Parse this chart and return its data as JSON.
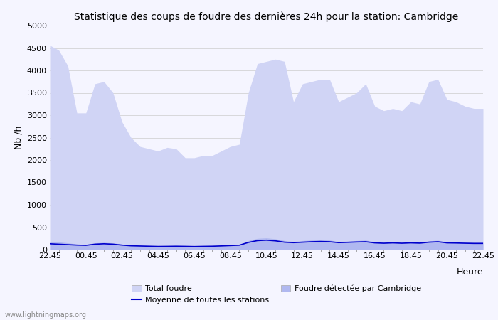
{
  "title": "Statistique des coups de foudre des dernières 24h pour la station: Cambridge",
  "ylabel": "Nb /h",
  "xlabel": "Heure",
  "watermark": "www.lightningmaps.org",
  "xtick_labels": [
    "22:45",
    "00:45",
    "02:45",
    "04:45",
    "06:45",
    "08:45",
    "10:45",
    "12:45",
    "14:45",
    "16:45",
    "18:45",
    "20:45",
    "22:45"
  ],
  "ylim": [
    0,
    5000
  ],
  "yticks": [
    0,
    500,
    1000,
    1500,
    2000,
    2500,
    3000,
    3500,
    4000,
    4500,
    5000
  ],
  "total_foudre_color": "#d0d4f5",
  "cambridge_color": "#b0b8f0",
  "moyenne_color": "#0000cc",
  "background_color": "#f5f5ff",
  "total_foudre": [
    4560,
    4450,
    4100,
    3050,
    3050,
    3700,
    3750,
    3500,
    2850,
    2500,
    2300,
    2250,
    2200,
    2280,
    2250,
    2050,
    2050,
    2100,
    2100,
    2200,
    2300,
    2350,
    3500,
    4150,
    4200,
    4250,
    4200,
    3300,
    3700,
    3750,
    3800,
    3800,
    3300,
    3400,
    3500,
    3700,
    3200,
    3100,
    3150,
    3100,
    3300,
    3250,
    3750,
    3800,
    3350,
    3300,
    3200,
    3150,
    3150
  ],
  "cambridge_foudre": [
    180,
    170,
    150,
    120,
    110,
    150,
    160,
    150,
    120,
    100,
    90,
    80,
    70,
    75,
    80,
    75,
    70,
    75,
    80,
    90,
    100,
    110,
    200,
    250,
    260,
    240,
    200,
    180,
    200,
    210,
    220,
    210,
    180,
    190,
    200,
    210,
    175,
    165,
    175,
    165,
    175,
    168,
    195,
    205,
    175,
    170,
    165,
    160,
    160
  ],
  "moyenne": [
    130,
    120,
    110,
    100,
    95,
    120,
    130,
    120,
    100,
    85,
    80,
    75,
    70,
    72,
    75,
    72,
    68,
    72,
    75,
    82,
    90,
    98,
    160,
    200,
    210,
    195,
    165,
    155,
    165,
    175,
    180,
    175,
    155,
    162,
    170,
    175,
    150,
    142,
    150,
    142,
    150,
    144,
    165,
    175,
    150,
    147,
    142,
    138,
    138
  ],
  "n_points": 49,
  "legend_items": [
    "Total foudre",
    "Moyenne de toutes les stations",
    "Foudre détectée par Cambridge"
  ]
}
